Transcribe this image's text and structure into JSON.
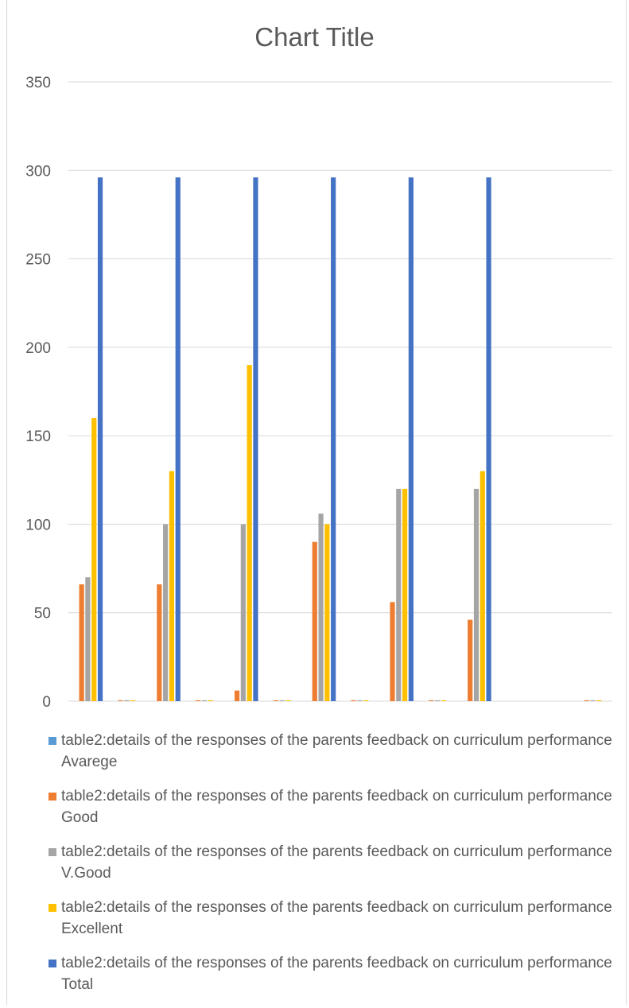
{
  "chart_data": {
    "type": "bar",
    "title": "Chart Title",
    "xlabel": "",
    "ylabel": "",
    "ylim": [
      0,
      350
    ],
    "yticks": [
      "0",
      "50",
      "100",
      "150",
      "200",
      "250",
      "300",
      "350"
    ],
    "grid": true,
    "legend_position": "bottom",
    "categories": [
      "",
      "",
      "",
      "",
      "",
      "",
      "",
      "",
      "",
      "",
      "",
      "",
      "",
      ""
    ],
    "series": [
      {
        "name": "table2:details of the responses of the parents feedback on curriculum performance  Avarege",
        "color": "#5b9bd5",
        "values": [
          0,
          0,
          0,
          0,
          0,
          0,
          0,
          0,
          0,
          0,
          0,
          0,
          0,
          0
        ]
      },
      {
        "name": "table2:details of the responses of the parents feedback on curriculum performance Good",
        "color": "#ed7d31",
        "values": [
          66,
          0.5,
          66,
          0.5,
          6,
          0.5,
          90,
          0.5,
          56,
          0.5,
          46,
          0,
          0,
          0.5
        ]
      },
      {
        "name": "table2:details of the responses of the parents feedback on curriculum performance V.Good",
        "color": "#a5a5a5",
        "values": [
          70,
          0.5,
          100,
          0.5,
          100,
          0.5,
          106,
          0.5,
          120,
          0.5,
          120,
          0,
          0,
          0.5
        ]
      },
      {
        "name": "table2:details of the responses of the parents feedback on curriculum performance  Excellent",
        "color": "#ffc000",
        "values": [
          160,
          0.5,
          130,
          0.5,
          190,
          0.5,
          100,
          0.5,
          120,
          0.5,
          130,
          0,
          0,
          0.5
        ]
      },
      {
        "name": "table2:details of the responses of the parents feedback on curriculum performance Total",
        "color": "#4472c4",
        "values": [
          296,
          0,
          296,
          0,
          296,
          0,
          296,
          0,
          296,
          0,
          296,
          0,
          0,
          0
        ]
      }
    ]
  }
}
